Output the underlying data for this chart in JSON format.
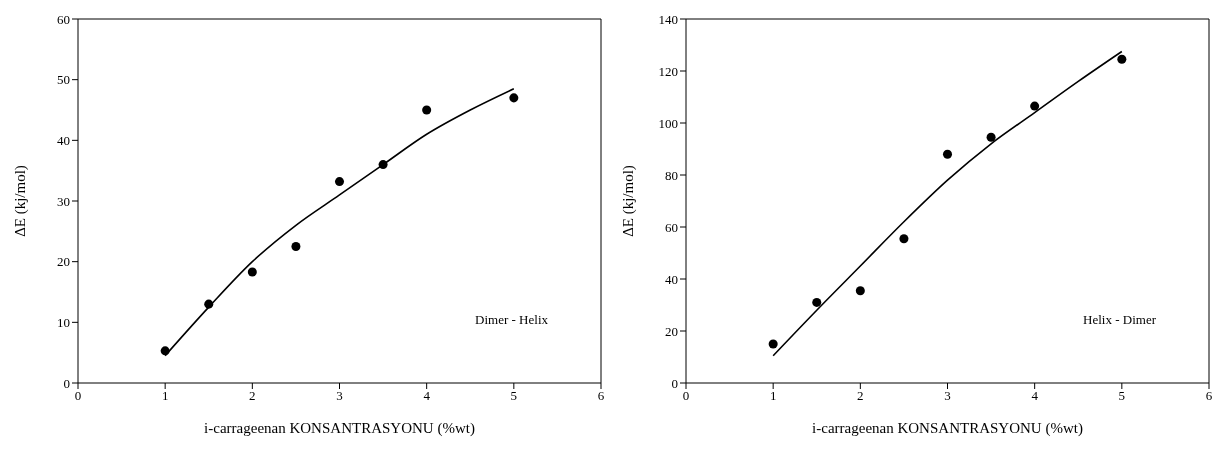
{
  "chart_data": [
    {
      "type": "scatter",
      "xlabel": "i-carrageenan KONSANTRASYONU (%wt)",
      "ylabel": "ΔE (kj/mol)",
      "xlim": [
        0,
        6
      ],
      "xticks": [
        0,
        1,
        2,
        3,
        4,
        5,
        6
      ],
      "ylim": [
        0,
        60
      ],
      "yticks": [
        0,
        10,
        20,
        30,
        40,
        50,
        60
      ],
      "annotations": [
        "Dimer - Helix"
      ],
      "series": [
        {
          "color": "#000000",
          "marker": "circle",
          "x": [
            1,
            1.5,
            2,
            2.5,
            3,
            3.5,
            4,
            5
          ],
          "values": [
            5.3,
            13,
            18.3,
            22.5,
            33.2,
            36,
            45,
            47
          ]
        },
        {
          "type": "line",
          "color": "#000000",
          "marker": "none",
          "x": [
            1,
            1.5,
            2,
            2.5,
            3,
            3.5,
            4,
            4.5,
            5
          ],
          "values": [
            4.5,
            12.5,
            20,
            26,
            31,
            36,
            41,
            45,
            48.5
          ]
        }
      ]
    },
    {
      "type": "scatter",
      "xlabel": "i-carrageenan KONSANTRASYONU (%wt)",
      "ylabel": "ΔE (kj/mol)",
      "xlim": [
        0,
        6
      ],
      "xticks": [
        0,
        1,
        2,
        3,
        4,
        5,
        6
      ],
      "ylim": [
        0,
        140
      ],
      "yticks": [
        0,
        20,
        40,
        60,
        80,
        100,
        120,
        140
      ],
      "annotations": [
        "Helix - Dimer"
      ],
      "series": [
        {
          "color": "#000000",
          "marker": "circle",
          "x": [
            1,
            1.5,
            2,
            2.5,
            3,
            3.5,
            4,
            5
          ],
          "values": [
            15,
            31,
            35.5,
            55.5,
            88,
            94.5,
            106.5,
            124.5
          ]
        },
        {
          "type": "line",
          "color": "#000000",
          "marker": "none",
          "x": [
            1,
            1.5,
            2,
            2.5,
            3,
            3.5,
            4,
            4.5,
            5
          ],
          "values": [
            10.5,
            28,
            45,
            62,
            78,
            92,
            104,
            116,
            127.5
          ]
        }
      ]
    }
  ]
}
